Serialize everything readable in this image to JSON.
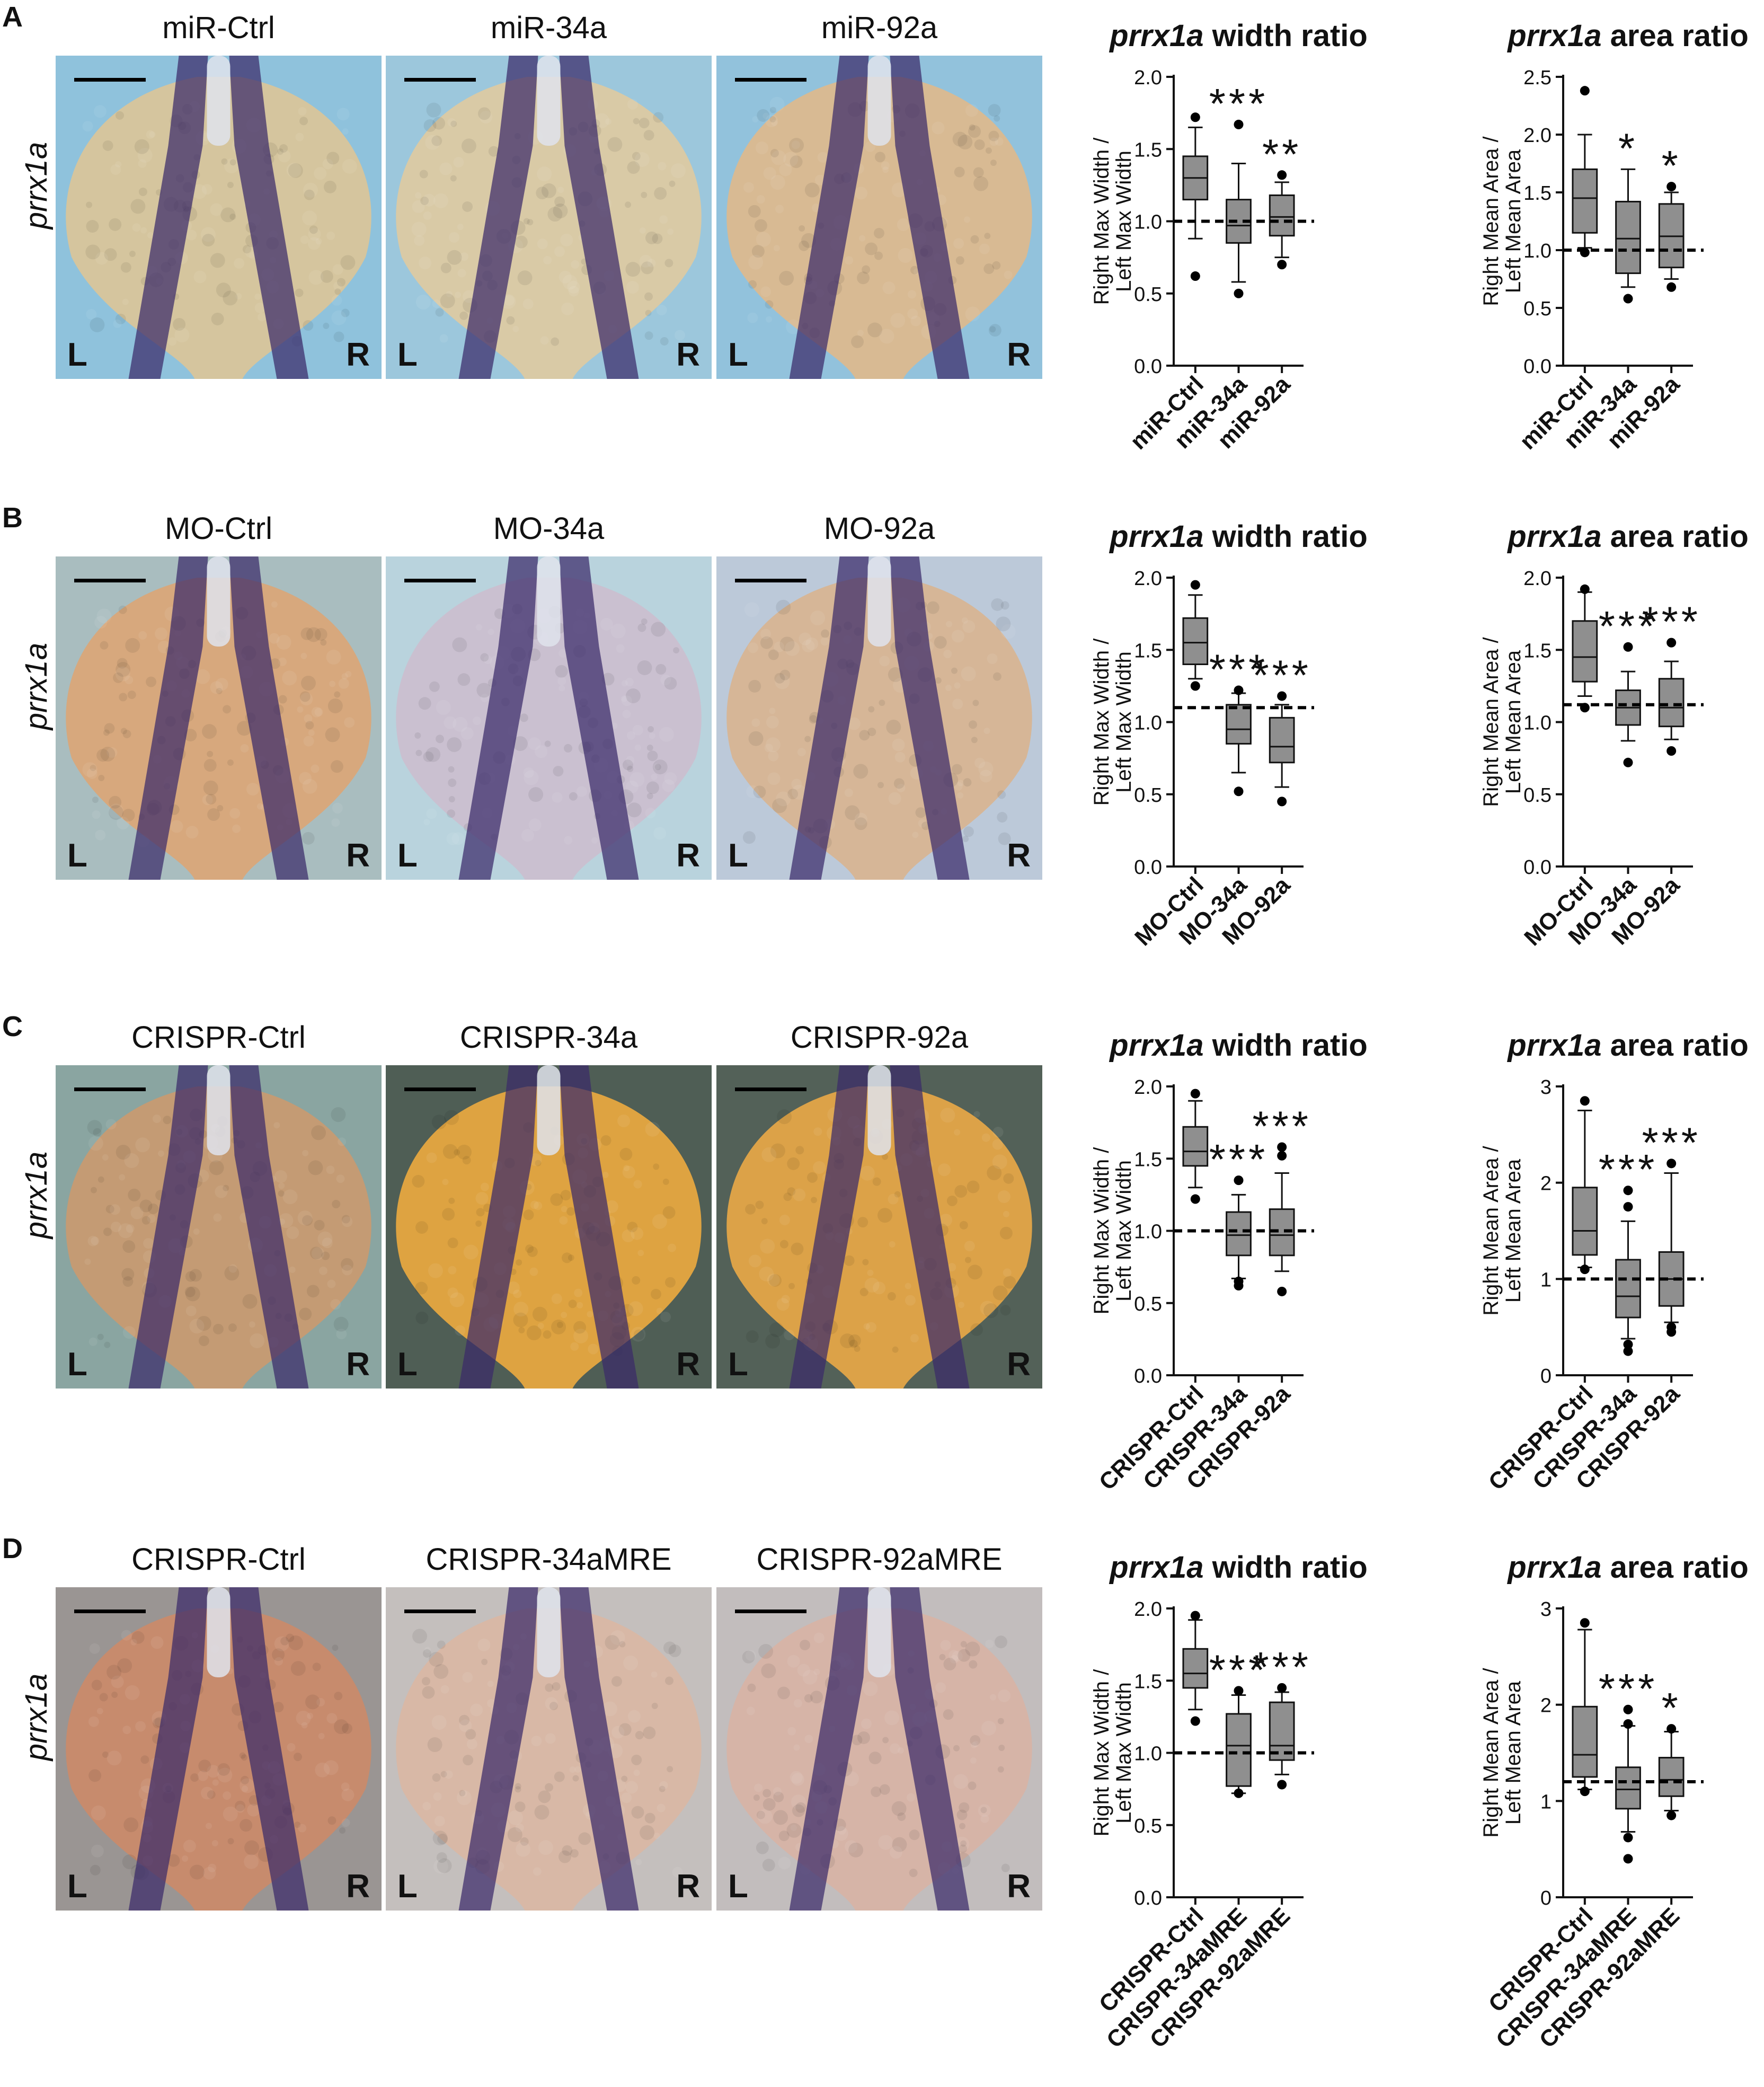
{
  "figure": {
    "ylabel_width": "Right Max Width / Left Max Width",
    "ylabel_area": "Right Mean Area / Left Mean Area",
    "side_labels": {
      "left": "L",
      "right": "R"
    },
    "gene_label": "prrx1a",
    "colors": {
      "box": "#8f8f8f",
      "axis": "#111111",
      "embryo_stain": "#3a2a6a"
    }
  },
  "chart_data": [
    {
      "panel": "A",
      "embryo_labels": [
        "miR-Ctrl",
        "miR-34a",
        "miR-92a"
      ],
      "backgrounds": [
        "#8fc2dc",
        "#9cc7dc",
        "#92c2dc"
      ],
      "embryo_tones": [
        "#d9c59a",
        "#dccaa2",
        "#dcb98e"
      ],
      "width_chart": {
        "type": "box",
        "title_italic": "prrx1a",
        "title_rest": " width ratio",
        "ylabel": "Right Max Width / Left Max Width",
        "ylim": [
          0,
          2.0
        ],
        "yticks": [
          "0.0",
          "0.5",
          "1.0",
          "1.5",
          "2.0"
        ],
        "ref_line": 1.0,
        "categories": [
          "miR-Ctrl",
          "miR-34a",
          "miR-92a"
        ],
        "boxes": [
          {
            "q1": 1.15,
            "median": 1.3,
            "q3": 1.45,
            "whisker_low": 0.88,
            "whisker_high": 1.65,
            "outliers": [
              1.72,
              0.62
            ],
            "sig": ""
          },
          {
            "q1": 0.85,
            "median": 0.97,
            "q3": 1.15,
            "whisker_low": 0.58,
            "whisker_high": 1.4,
            "outliers": [
              1.67,
              0.5
            ],
            "sig": "***"
          },
          {
            "q1": 0.9,
            "median": 1.03,
            "q3": 1.18,
            "whisker_low": 0.75,
            "whisker_high": 1.27,
            "outliers": [
              1.32,
              0.7
            ],
            "sig": "**"
          }
        ]
      },
      "area_chart": {
        "type": "box",
        "title_italic": "prrx1a",
        "title_rest": " area ratio",
        "ylabel": "Right Mean Area / Left Mean Area",
        "ylim": [
          0,
          2.5
        ],
        "yticks": [
          "0.0",
          "0.5",
          "1.0",
          "1.5",
          "2.0",
          "2.5"
        ],
        "ref_line": 1.0,
        "categories": [
          "miR-Ctrl",
          "miR-34a",
          "miR-92a"
        ],
        "boxes": [
          {
            "q1": 1.15,
            "median": 1.45,
            "q3": 1.7,
            "whisker_low": 1.02,
            "whisker_high": 2.0,
            "outliers": [
              2.38,
              0.98
            ],
            "sig": ""
          },
          {
            "q1": 0.8,
            "median": 1.1,
            "q3": 1.42,
            "whisker_low": 0.68,
            "whisker_high": 1.7,
            "outliers": [
              0.58
            ],
            "sig": "*"
          },
          {
            "q1": 0.85,
            "median": 1.12,
            "q3": 1.4,
            "whisker_low": 0.75,
            "whisker_high": 1.5,
            "outliers": [
              1.55,
              0.68
            ],
            "sig": "*"
          }
        ]
      }
    },
    {
      "panel": "B",
      "embryo_labels": [
        "MO-Ctrl",
        "MO-34a",
        "MO-92a"
      ],
      "backgrounds": [
        "#a9bdbf",
        "#b9d3dd",
        "#bcc9d9"
      ],
      "embryo_tones": [
        "#d9a679",
        "#cabfcf",
        "#d7b593"
      ],
      "width_chart": {
        "type": "box",
        "title_italic": "prrx1a",
        "title_rest": " width ratio",
        "ylabel": "Right Max Width / Left Max Width",
        "ylim": [
          0,
          2.0
        ],
        "yticks": [
          "0.0",
          "0.5",
          "1.0",
          "1.5",
          "2.0"
        ],
        "ref_line": 1.1,
        "categories": [
          "MO-Ctrl",
          "MO-34a",
          "MO-92a"
        ],
        "boxes": [
          {
            "q1": 1.4,
            "median": 1.55,
            "q3": 1.72,
            "whisker_low": 1.3,
            "whisker_high": 1.88,
            "outliers": [
              1.95,
              1.25
            ],
            "sig": ""
          },
          {
            "q1": 0.85,
            "median": 0.95,
            "q3": 1.12,
            "whisker_low": 0.65,
            "whisker_high": 1.2,
            "outliers": [
              1.22,
              0.52
            ],
            "sig": "***"
          },
          {
            "q1": 0.72,
            "median": 0.83,
            "q3": 1.03,
            "whisker_low": 0.55,
            "whisker_high": 1.12,
            "outliers": [
              1.18,
              0.45
            ],
            "sig": "***"
          }
        ]
      },
      "area_chart": {
        "type": "box",
        "title_italic": "prrx1a",
        "title_rest": " area ratio",
        "ylabel": "Right Mean Area / Left Mean Area",
        "ylim": [
          0,
          2.0
        ],
        "yticks": [
          "0.0",
          "0.5",
          "1.0",
          "1.5",
          "2.0"
        ],
        "ref_line": 1.12,
        "categories": [
          "MO-Ctrl",
          "MO-34a",
          "MO-92a"
        ],
        "boxes": [
          {
            "q1": 1.28,
            "median": 1.45,
            "q3": 1.7,
            "whisker_low": 1.18,
            "whisker_high": 1.9,
            "outliers": [
              1.92,
              1.1
            ],
            "sig": ""
          },
          {
            "q1": 0.98,
            "median": 1.1,
            "q3": 1.22,
            "whisker_low": 0.87,
            "whisker_high": 1.35,
            "outliers": [
              1.52,
              0.72
            ],
            "sig": "***"
          },
          {
            "q1": 0.97,
            "median": 1.1,
            "q3": 1.3,
            "whisker_low": 0.88,
            "whisker_high": 1.42,
            "outliers": [
              1.55,
              0.8
            ],
            "sig": "***"
          }
        ]
      }
    },
    {
      "panel": "C",
      "embryo_labels": [
        "CRISPR-Ctrl",
        "CRISPR-34a",
        "CRISPR-92a"
      ],
      "backgrounds": [
        "#8aa5a1",
        "#4f5e55",
        "#536158"
      ],
      "embryo_tones": [
        "#c79a72",
        "#e6a640",
        "#e4a548"
      ],
      "width_chart": {
        "type": "box",
        "title_italic": "prrx1a",
        "title_rest": " width ratio",
        "ylabel": "Right Max Width / Left Max Width",
        "ylim": [
          0,
          2.0
        ],
        "yticks": [
          "0.0",
          "0.5",
          "1.0",
          "1.5",
          "2.0"
        ],
        "ref_line": 1.0,
        "categories": [
          "CRISPR-Ctrl",
          "CRISPR-34a",
          "CRISPR-92a"
        ],
        "boxes": [
          {
            "q1": 1.45,
            "median": 1.55,
            "q3": 1.72,
            "whisker_low": 1.3,
            "whisker_high": 1.9,
            "outliers": [
              1.95,
              1.22
            ],
            "sig": ""
          },
          {
            "q1": 0.83,
            "median": 0.97,
            "q3": 1.13,
            "whisker_low": 0.67,
            "whisker_high": 1.25,
            "outliers": [
              1.35,
              0.62,
              0.65
            ],
            "sig": "***"
          },
          {
            "q1": 0.83,
            "median": 0.97,
            "q3": 1.15,
            "whisker_low": 0.72,
            "whisker_high": 1.4,
            "outliers": [
              1.58,
              1.52,
              0.58
            ],
            "sig": "***"
          }
        ]
      },
      "area_chart": {
        "type": "box",
        "title_italic": "prrx1a",
        "title_rest": " area ratio",
        "ylabel": "Right Mean Area / Left Mean Area",
        "ylim": [
          0,
          3
        ],
        "yticks": [
          "0",
          "1",
          "2",
          "3"
        ],
        "ref_line": 1.0,
        "categories": [
          "CRISPR-Ctrl",
          "CRISPR-34a",
          "CRISPR-92a"
        ],
        "boxes": [
          {
            "q1": 1.25,
            "median": 1.5,
            "q3": 1.95,
            "whisker_low": 1.12,
            "whisker_high": 2.75,
            "outliers": [
              2.85,
              1.1
            ],
            "sig": ""
          },
          {
            "q1": 0.6,
            "median": 0.82,
            "q3": 1.2,
            "whisker_low": 0.38,
            "whisker_high": 1.6,
            "outliers": [
              1.75,
              1.92,
              0.32,
              0.25
            ],
            "sig": "***"
          },
          {
            "q1": 0.72,
            "median": 1.0,
            "q3": 1.28,
            "whisker_low": 0.55,
            "whisker_high": 2.1,
            "outliers": [
              2.2,
              0.5,
              0.45
            ],
            "sig": "***"
          }
        ]
      }
    },
    {
      "panel": "D",
      "embryo_labels": [
        "CRISPR-Ctrl",
        "CRISPR-34aMRE",
        "CRISPR-92aMRE"
      ],
      "backgrounds": [
        "#9a9593",
        "#c4bfbd",
        "#c2bdbd"
      ],
      "embryo_tones": [
        "#c98a6a",
        "#d9b7a4",
        "#d7b3a5"
      ],
      "width_chart": {
        "type": "box",
        "title_italic": "prrx1a",
        "title_rest": " width ratio",
        "ylabel": "Right Max Width / Left Max Width",
        "ylim": [
          0,
          2.0
        ],
        "yticks": [
          "0.0",
          "0.5",
          "1.0",
          "1.5",
          "2.0"
        ],
        "ref_line": 1.0,
        "categories": [
          "CRISPR-Ctrl",
          "CRISPR-34aMRE",
          "CRISPR-92aMRE"
        ],
        "boxes": [
          {
            "q1": 1.45,
            "median": 1.55,
            "q3": 1.72,
            "whisker_low": 1.3,
            "whisker_high": 1.92,
            "outliers": [
              1.95,
              1.22
            ],
            "sig": ""
          },
          {
            "q1": 0.77,
            "median": 1.05,
            "q3": 1.27,
            "whisker_low": 0.72,
            "whisker_high": 1.4,
            "outliers": [
              1.43,
              0.72
            ],
            "sig": "***"
          },
          {
            "q1": 0.95,
            "median": 1.05,
            "q3": 1.35,
            "whisker_low": 0.85,
            "whisker_high": 1.42,
            "outliers": [
              1.45,
              0.78
            ],
            "sig": "***"
          }
        ]
      },
      "area_chart": {
        "type": "box",
        "title_italic": "prrx1a",
        "title_rest": " area ratio",
        "ylabel": "Right Mean Area / Left Mean Area",
        "ylim": [
          0,
          3
        ],
        "yticks": [
          "0",
          "1",
          "2",
          "3"
        ],
        "ref_line": 1.2,
        "categories": [
          "CRISPR-Ctrl",
          "CRISPR-34aMRE",
          "CRISPR-92aMRE"
        ],
        "boxes": [
          {
            "q1": 1.25,
            "median": 1.48,
            "q3": 1.98,
            "whisker_low": 1.12,
            "whisker_high": 2.78,
            "outliers": [
              2.85,
              1.1
            ],
            "sig": ""
          },
          {
            "q1": 0.92,
            "median": 1.12,
            "q3": 1.35,
            "whisker_low": 0.68,
            "whisker_high": 1.78,
            "outliers": [
              1.95,
              1.8,
              0.62,
              0.4
            ],
            "sig": "***"
          },
          {
            "q1": 1.05,
            "median": 1.22,
            "q3": 1.45,
            "whisker_low": 0.9,
            "whisker_high": 1.72,
            "outliers": [
              1.75,
              0.85
            ],
            "sig": "*"
          }
        ]
      }
    }
  ]
}
